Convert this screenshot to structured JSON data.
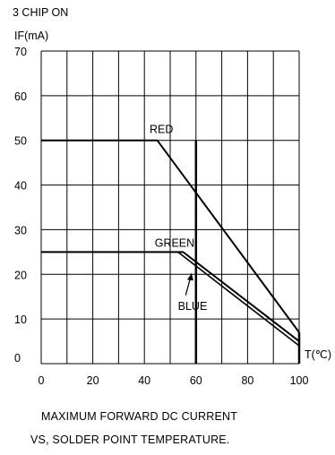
{
  "chart_data": {
    "type": "line",
    "title": "3 CHIP ON",
    "ylabel": "IF(mA)",
    "xlabel": "T(℃)",
    "xlim": [
      0,
      100
    ],
    "ylim": [
      0,
      70
    ],
    "x_ticks": [
      "0",
      "20",
      "40",
      "60",
      "80",
      "100"
    ],
    "y_ticks": [
      "0",
      "10",
      "20",
      "30",
      "40",
      "50",
      "60",
      "70"
    ],
    "grid": true,
    "series": [
      {
        "name": "RED",
        "x": [
          0,
          45,
          100
        ],
        "y": [
          50,
          50,
          7
        ]
      },
      {
        "name": "GREEN",
        "x": [
          0,
          55,
          100
        ],
        "y": [
          25,
          25,
          5
        ]
      },
      {
        "name": "BLUE",
        "x": [
          0,
          53,
          100
        ],
        "y": [
          25,
          25,
          4
        ]
      }
    ],
    "caption_lines": [
      "MAXIMUM FORWARD DC CURRENT",
      "VS, SOLDER POINT TEMPERATURE."
    ]
  }
}
